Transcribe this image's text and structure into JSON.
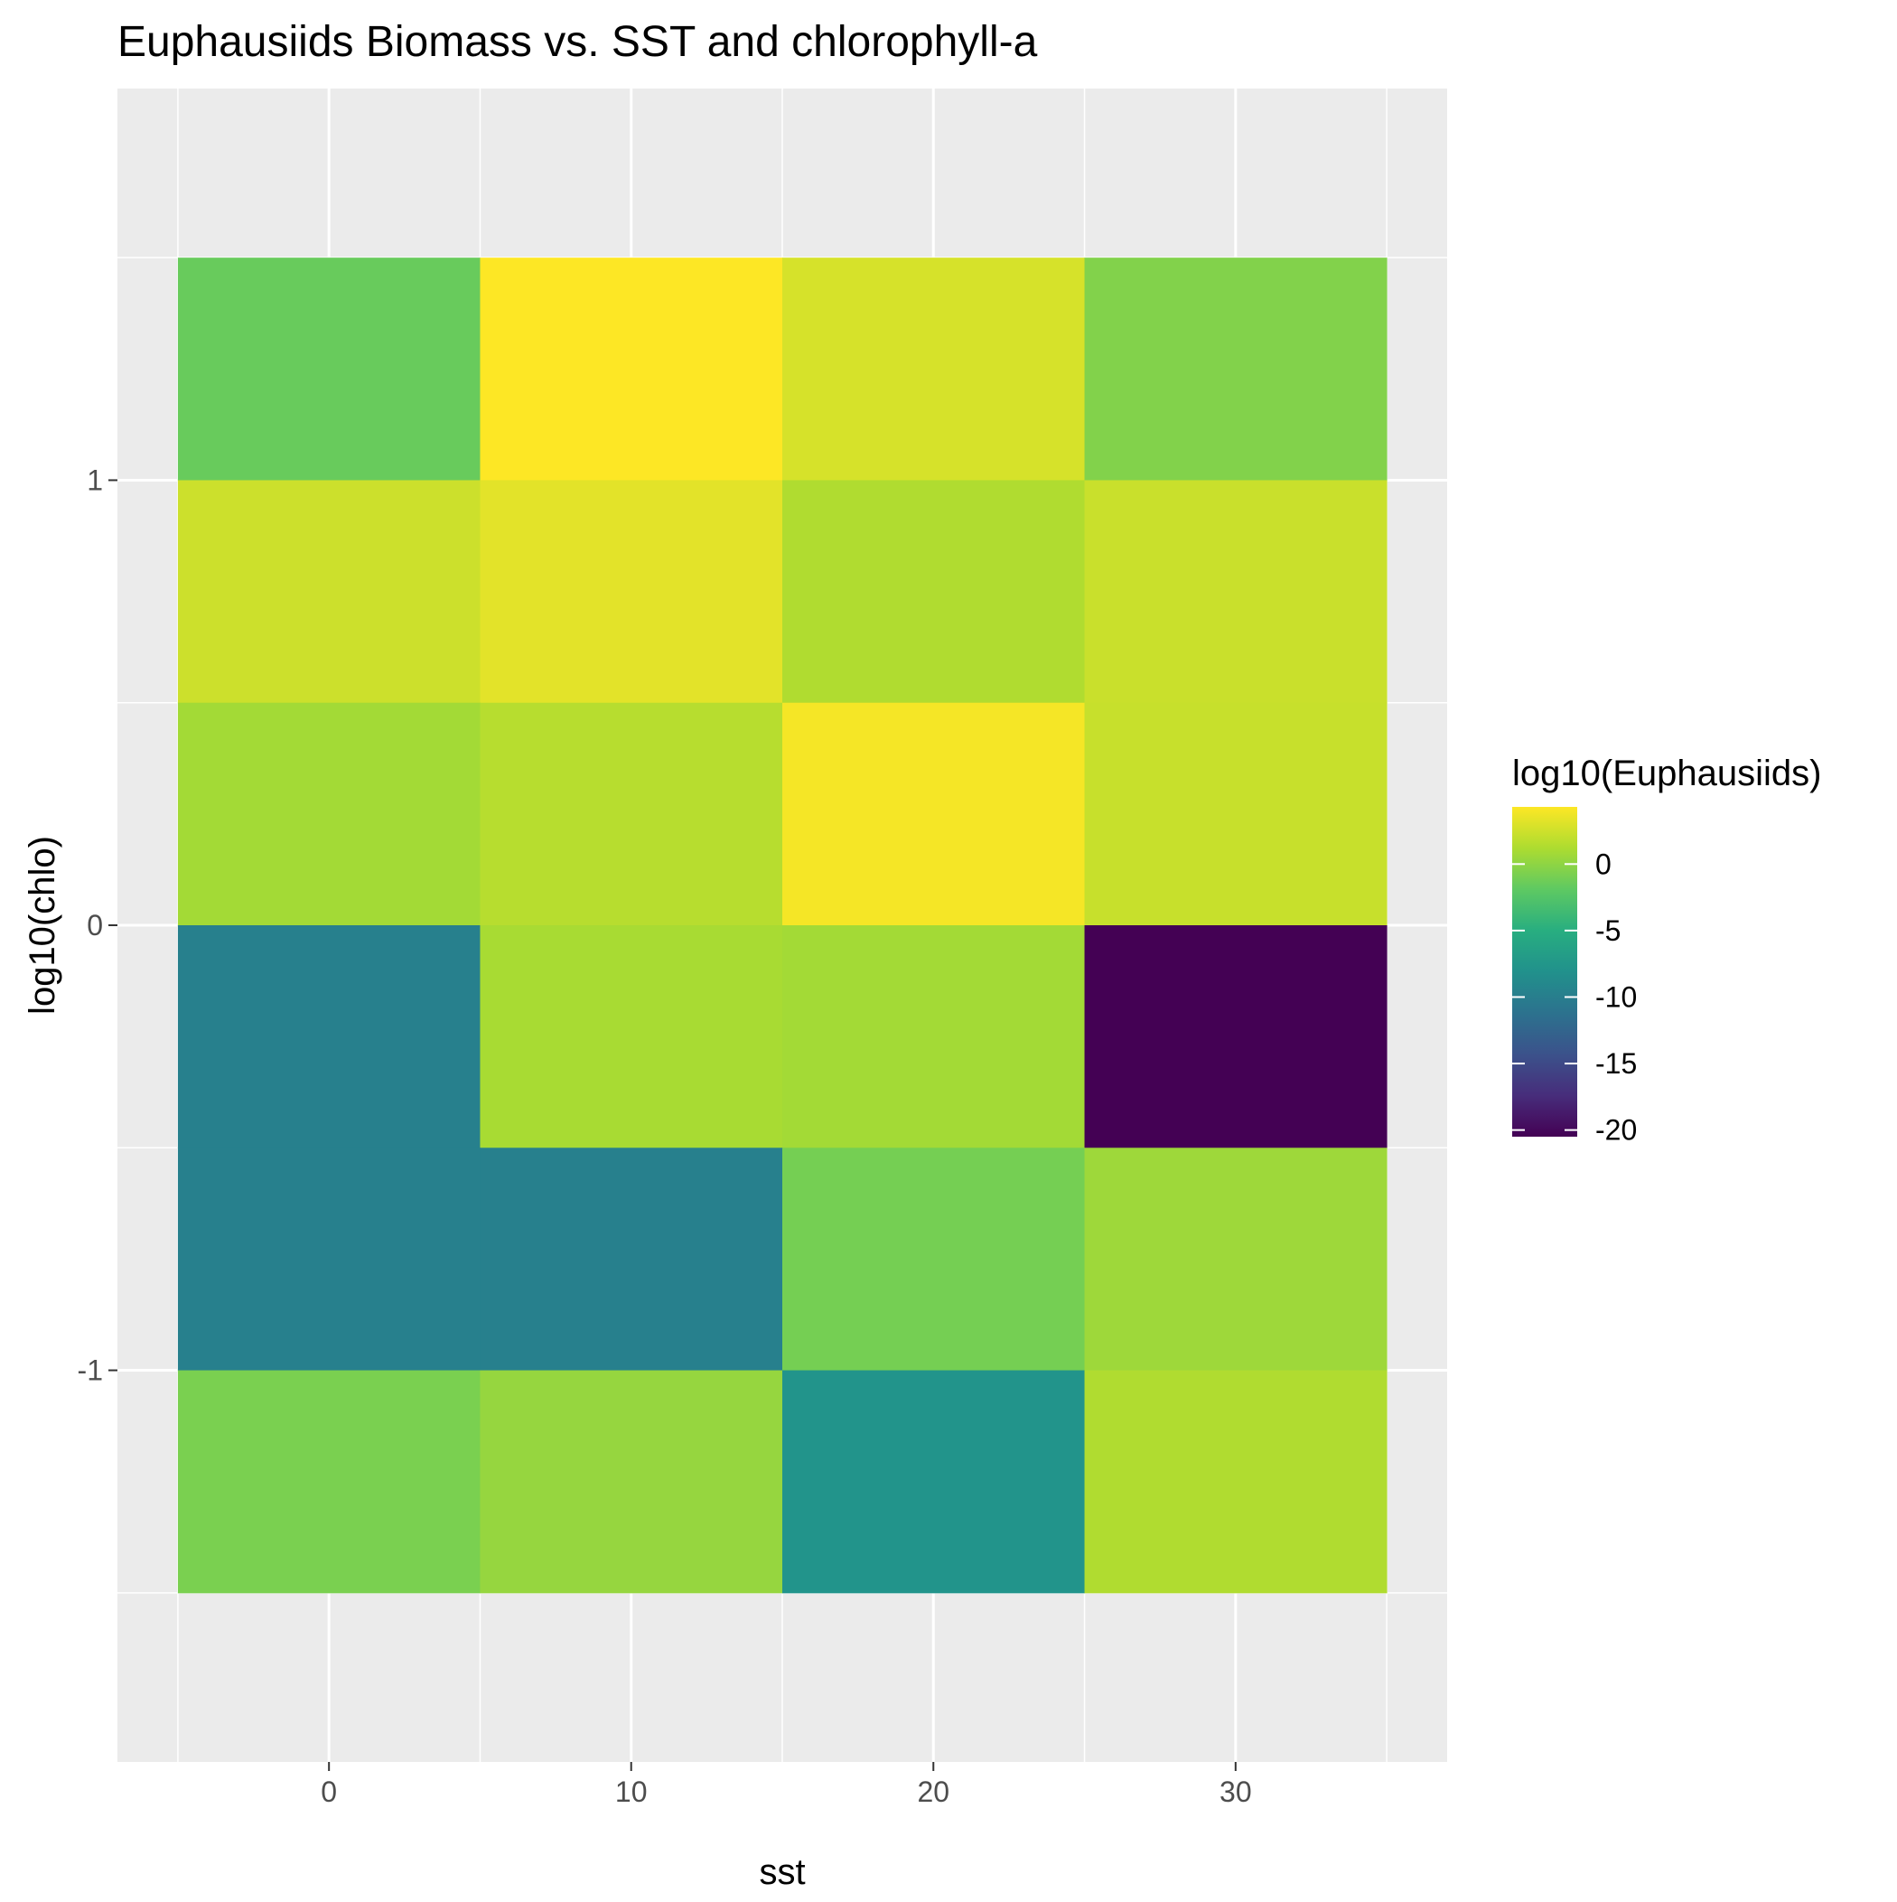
{
  "chart_data": {
    "type": "heatmap",
    "title": "Euphausiids Biomass vs. SST and chlorophyll-a",
    "xlabel": "sst",
    "ylabel": "log10(chlo)",
    "x_ticks": [
      "0",
      "10",
      "20",
      "30"
    ],
    "y_ticks": [
      "1",
      "0",
      "-1"
    ],
    "xlim": [
      -7,
      37
    ],
    "ylim": [
      -1.88,
      1.88
    ],
    "x_tick_values": [
      0,
      10,
      20,
      30
    ],
    "y_tick_values": [
      1,
      0,
      -1
    ],
    "x_centers": [
      0,
      10,
      20,
      30
    ],
    "x_bin_width": 10,
    "y_centers": [
      1.25,
      0.75,
      0.25,
      -0.25,
      -0.75,
      -1.25
    ],
    "y_bin_height": 0.5,
    "values": [
      [
        -1.5,
        4.3,
        2.8,
        -0.5
      ],
      [
        2.4,
        3.3,
        1.3,
        2.3
      ],
      [
        0.8,
        1.6,
        4.0,
        2.2
      ],
      [
        -9.8,
        1.0,
        0.8,
        -20.5
      ],
      [
        -9.8,
        -9.8,
        -1.0,
        0.6
      ],
      [
        -0.8,
        0.3,
        -7.8,
        1.3
      ]
    ],
    "legend": {
      "title": "log10(Euphausiids)",
      "labels": [
        "0",
        "-5",
        "-10",
        "-15",
        "-20"
      ],
      "label_values": [
        0,
        -5,
        -10,
        -15,
        -20
      ],
      "range": [
        -20.5,
        4.3
      ],
      "placement": "right"
    },
    "colors": {
      "panel_background": "#ebebeb",
      "grid": "#ffffff",
      "colormap": [
        "#440154",
        "#472d7b",
        "#3b528b",
        "#2c728e",
        "#21918c",
        "#28ae80",
        "#5ec962",
        "#addc30",
        "#fde725"
      ]
    },
    "grid": true
  }
}
